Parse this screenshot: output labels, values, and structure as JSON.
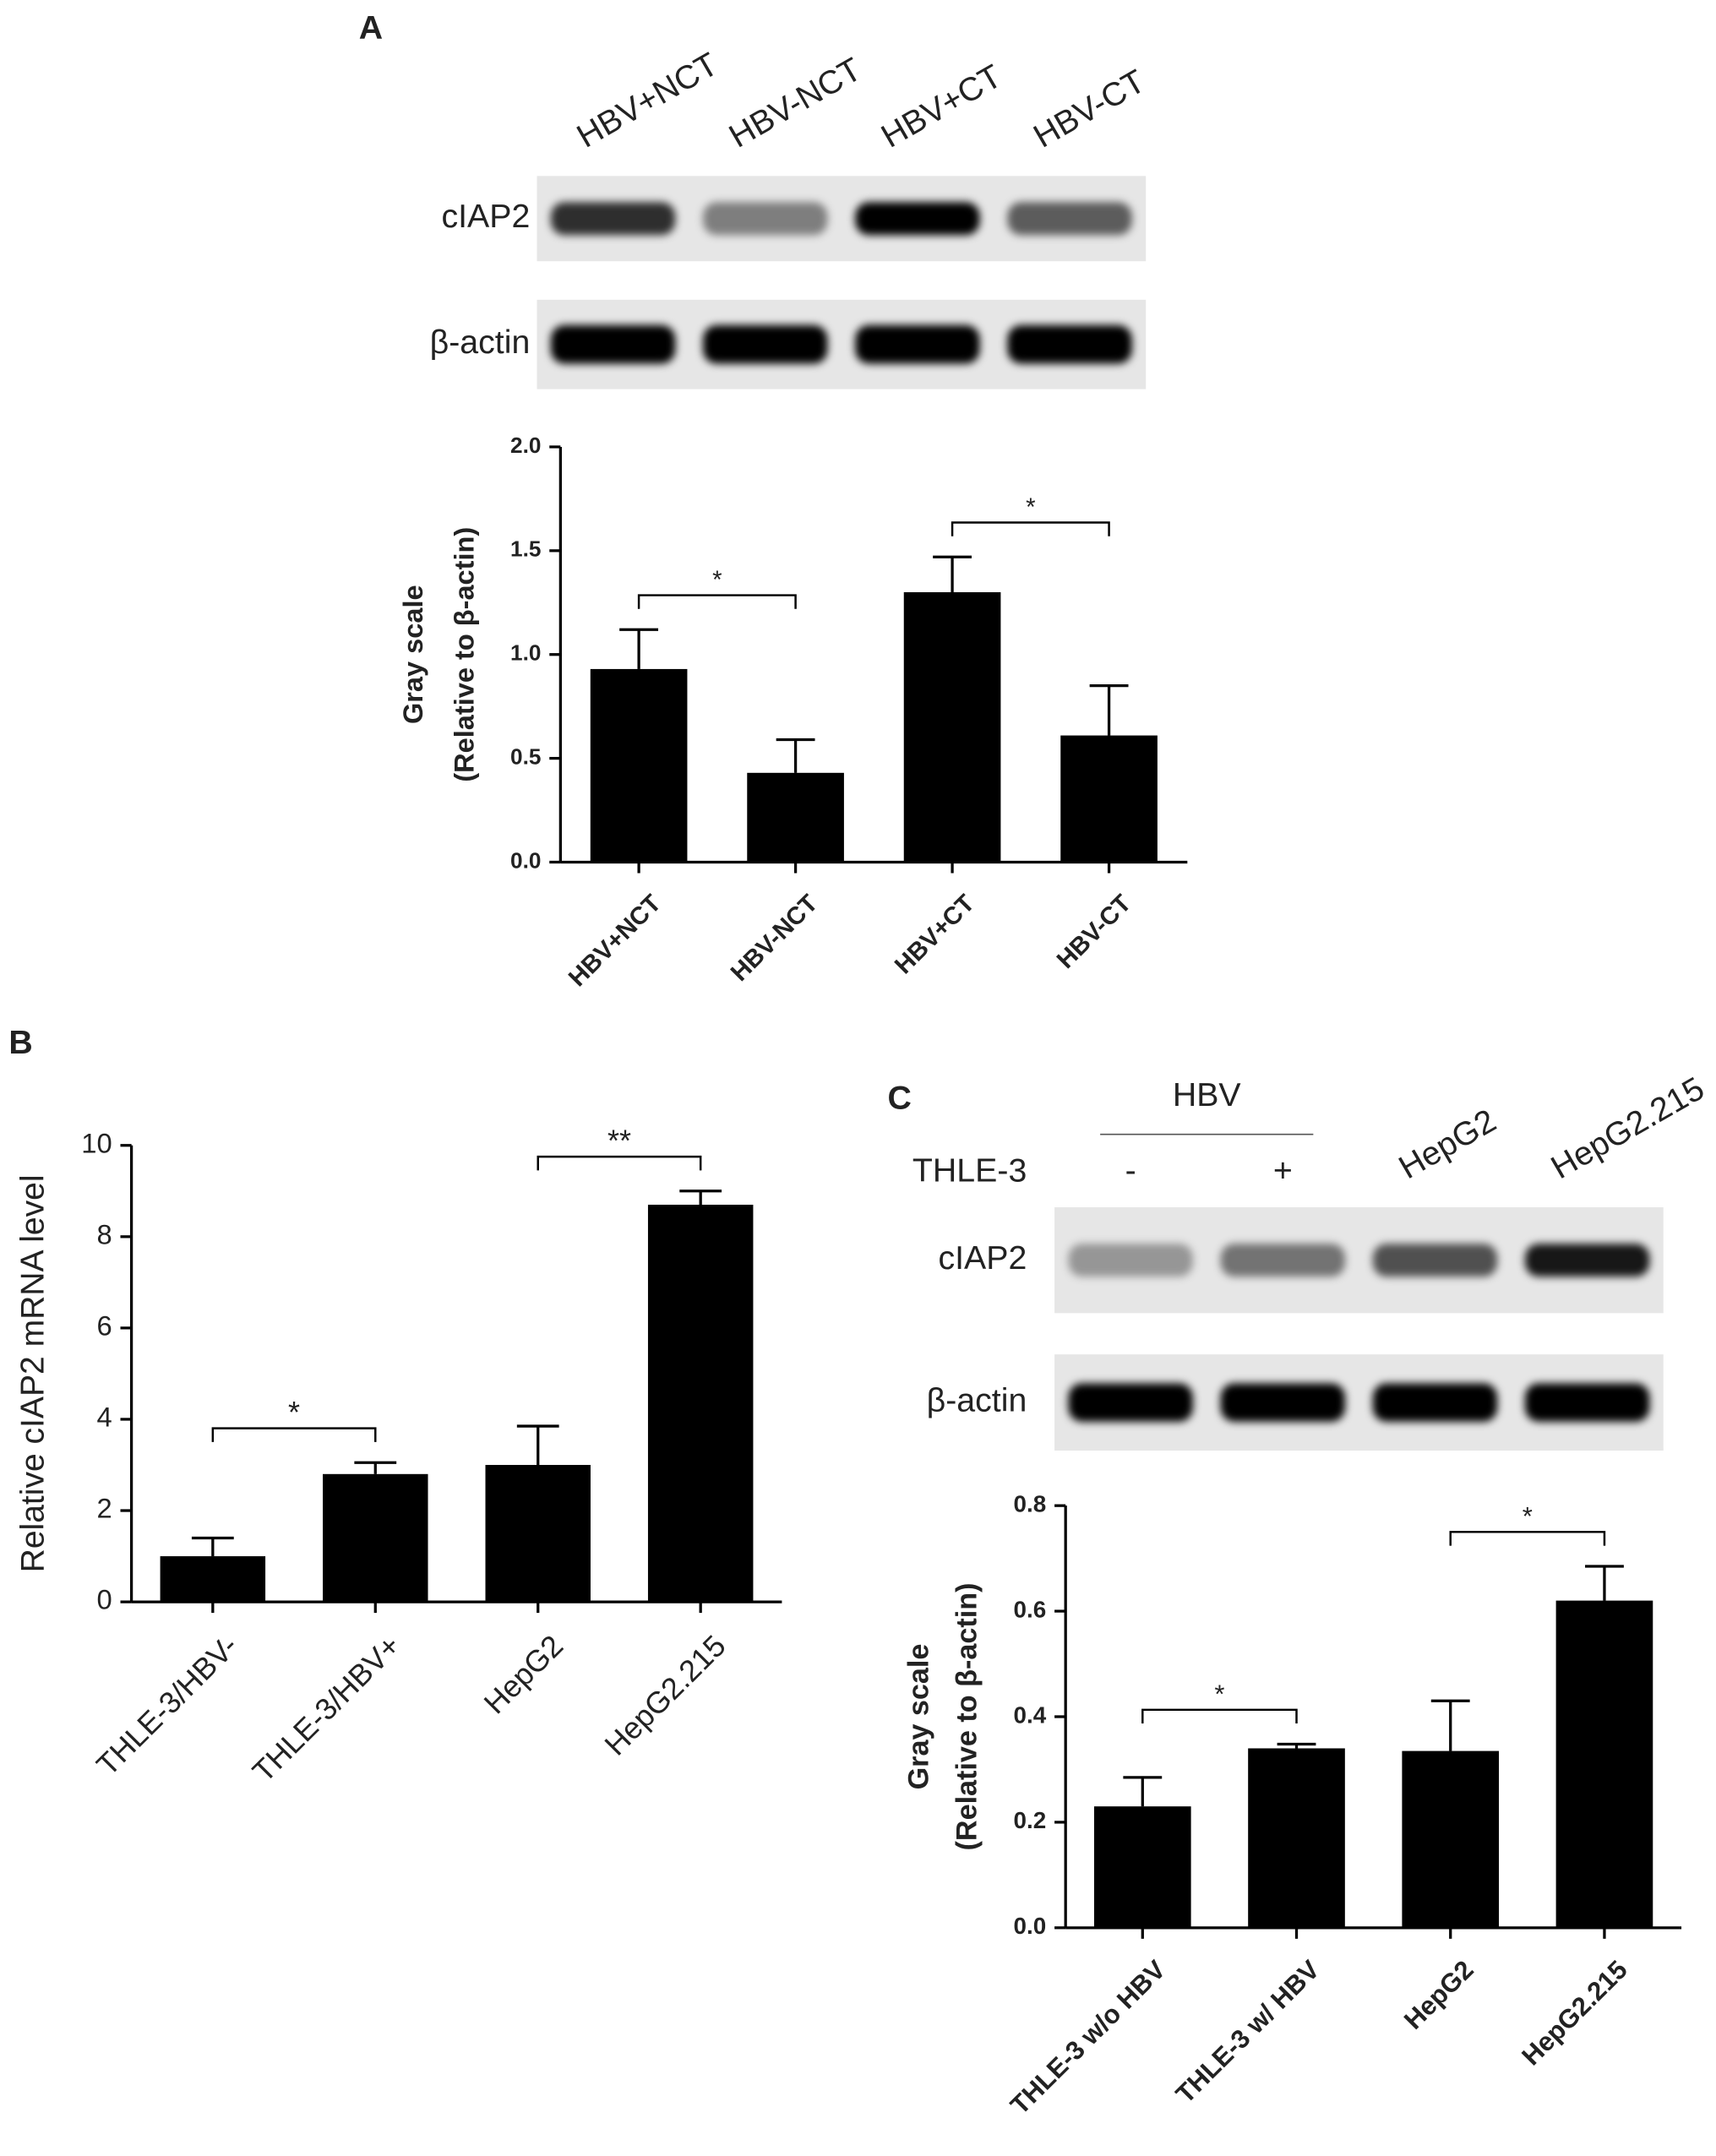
{
  "chart_data": [
    {
      "type": "bar",
      "panel": "A",
      "blot": {
        "lanes": [
          "HBV+NCT",
          "HBV-NCT",
          "HBV+CT",
          "HBV-CT"
        ],
        "rows": [
          "cIAP2",
          "β-actin"
        ]
      },
      "ylabel": [
        "Gray scale",
        "(Relative to β-actin)"
      ],
      "categories": [
        "HBV+NCT",
        "HBV-NCT",
        "HBV+CT",
        "HBV-CT"
      ],
      "values": [
        0.93,
        0.43,
        1.3,
        0.61
      ],
      "errors": [
        0.19,
        0.16,
        0.17,
        0.24
      ],
      "color": "#000000",
      "ylim": [
        0,
        2
      ],
      "yticks": [
        {
          "value": 0,
          "label": "0.0"
        },
        0.5,
        {
          "value": 1,
          "label": "1.0"
        },
        1.5,
        {
          "value": 2,
          "label": "2.0"
        }
      ],
      "annotations": [
        {
          "text": "*",
          "from": "HBV+NCT",
          "to": "HBV-NCT"
        },
        {
          "text": "*",
          "from": "HBV+CT",
          "to": "HBV-CT"
        }
      ]
    },
    {
      "type": "bar",
      "panel": "B",
      "ylabel": [
        "Relative cIAP2 mRNA level"
      ],
      "categories": [
        "THLE-3/HBV-",
        "THLE-3/HBV+",
        "HepG2",
        "HepG2.215"
      ],
      "values": [
        1.0,
        2.8,
        3.0,
        8.7
      ],
      "errors": [
        0.4,
        0.25,
        0.85,
        0.3
      ],
      "color": "#000000",
      "ylim": [
        0,
        10
      ],
      "yticks": [
        0,
        2,
        4,
        6,
        8,
        10
      ],
      "annotations": [
        {
          "text": "*",
          "from": "THLE-3/HBV-",
          "to": "THLE-3/HBV+"
        },
        {
          "text": "**",
          "from": "HepG2",
          "to": "HepG2.215"
        }
      ]
    },
    {
      "type": "bar",
      "panel": "C",
      "blot": {
        "group_label": "HBV",
        "row_header": "THLE-3",
        "lanes": [
          "-",
          "+",
          "HepG2",
          "HepG2.215"
        ],
        "rows": [
          "cIAP2",
          "β-actin"
        ]
      },
      "ylabel": [
        "Gray scale",
        "(Relative to β-actin)"
      ],
      "categories": [
        "THLE-3 w/o HBV",
        "THLE-3 w/ HBV",
        "HepG2",
        "HepG2.215"
      ],
      "values": [
        0.23,
        0.34,
        0.335,
        0.62
      ],
      "errors": [
        0.055,
        0.008,
        0.095,
        0.065
      ],
      "color": "#000000",
      "ylim": [
        0,
        0.8
      ],
      "yticks": [
        {
          "value": 0,
          "label": "0.0"
        },
        0.2,
        0.4,
        0.6,
        0.8
      ],
      "annotations": [
        {
          "text": "*",
          "from": "THLE-3 w/o HBV",
          "to": "THLE-3 w/ HBV"
        },
        {
          "text": "*",
          "from": "HepG2",
          "to": "HepG2.215"
        }
      ]
    }
  ]
}
